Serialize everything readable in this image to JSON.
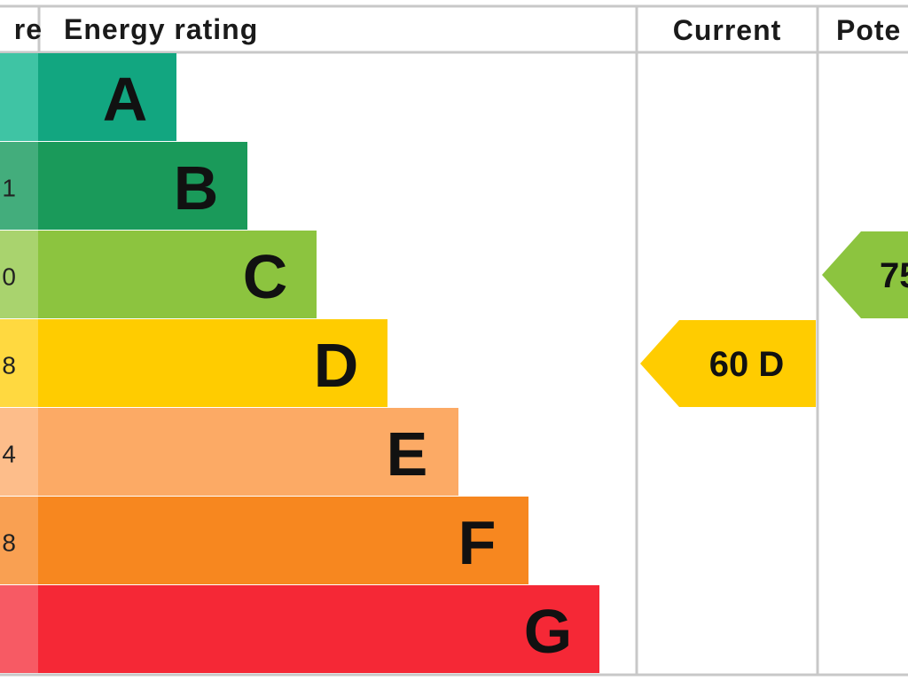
{
  "header": {
    "score": "re",
    "rating": "Energy rating",
    "current": "Current",
    "potential": "Pote"
  },
  "rows": [
    {
      "letter": "A"
    },
    {
      "score": "1",
      "letter": "B"
    },
    {
      "score": "0",
      "letter": "C"
    },
    {
      "score": "8",
      "letter": "D"
    },
    {
      "score": "4",
      "letter": "E"
    },
    {
      "score": "8",
      "letter": "F"
    },
    {
      "letter": "G"
    }
  ],
  "current": {
    "label": "60 D"
  },
  "potential": {
    "label": "75"
  }
}
